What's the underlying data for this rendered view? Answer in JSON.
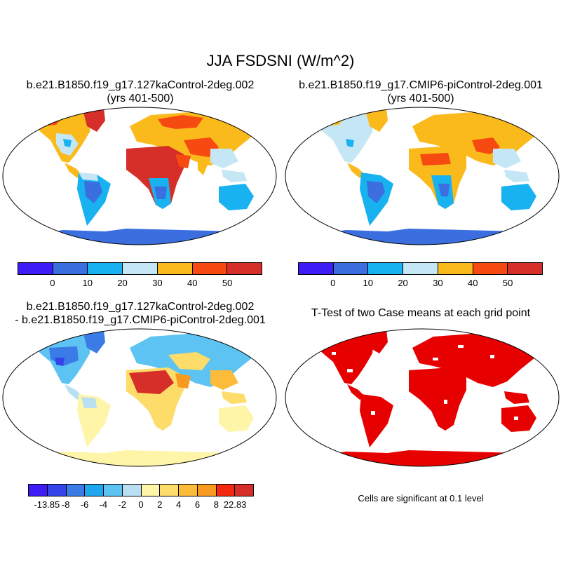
{
  "title": "JJA FSDSNI (W/m^2)",
  "panels": [
    {
      "title_line1": "b.e21.B1850.f19_g17.127kaControl-2deg.002",
      "title_line2": "(yrs 401-500)"
    },
    {
      "title_line1": "b.e21.B1850.f19_g17.CMIP6-piControl-2deg.001",
      "title_line2": "(yrs 401-500)"
    },
    {
      "title_line1": "b.e21.B1850.f19_g17.127kaControl-2deg.002",
      "title_line2": "- b.e21.B1850.f19_g17.CMIP6-piControl-2deg.001"
    },
    {
      "title_line1": "T-Test of two Case means at each grid point",
      "title_line2": ""
    }
  ],
  "significance_note": "Cells are significant at 0.1 level",
  "colorbar_abs": {
    "colors": [
      "#3d1cf5",
      "#3b6fe0",
      "#18b2f0",
      "#c4e6f5",
      "#fbba1c",
      "#f64a10",
      "#d62e28"
    ],
    "labels": [
      "0",
      "10",
      "20",
      "30",
      "40",
      "50"
    ]
  },
  "colorbar_diff": {
    "colors": [
      "#3d1cf5",
      "#3344e8",
      "#3b7be6",
      "#1ea7ee",
      "#5cc3f2",
      "#b8e0f2",
      "#fff5a8",
      "#fddc6a",
      "#fdbb3a",
      "#f89a20",
      "#f42a10",
      "#d62e28"
    ],
    "labels": [
      "-13.85",
      "-8",
      "-6",
      "-4",
      "-2",
      "0",
      "2",
      "4",
      "6",
      "8",
      "22.83"
    ]
  },
  "colors": {
    "map_outline": "#000000",
    "significant": "#e60000"
  }
}
